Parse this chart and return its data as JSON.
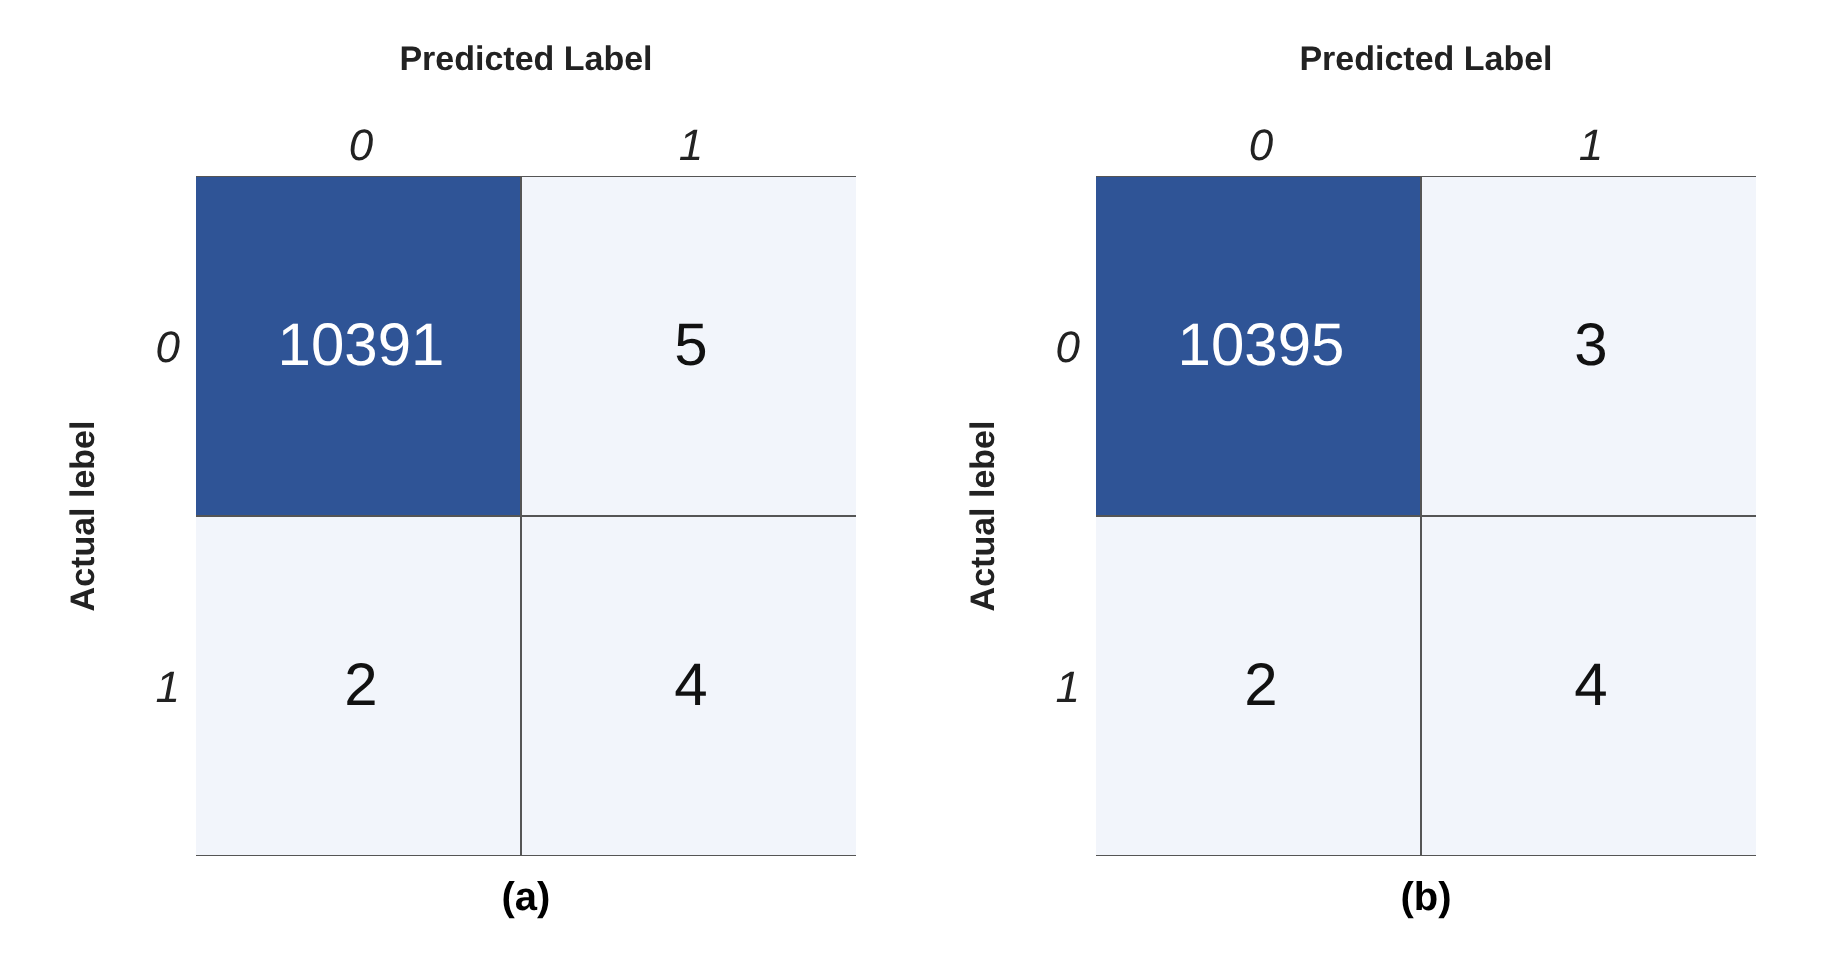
{
  "chart_data": [
    {
      "type": "heatmap",
      "title": "(a)",
      "xlabel": "Predicted Label",
      "ylabel": "Actual lebel",
      "categories": [
        "0",
        "1"
      ],
      "y_categories": [
        "0",
        "1"
      ],
      "cells": [
        [
          10391,
          5
        ],
        [
          2,
          4
        ]
      ],
      "data_labels": true
    },
    {
      "type": "heatmap",
      "title": "(b)",
      "xlabel": "Predicted Label",
      "ylabel": "Actual lebel",
      "categories": [
        "0",
        "1"
      ],
      "y_categories": [
        "0",
        "1"
      ],
      "cells": [
        [
          10395,
          3
        ],
        [
          2,
          4
        ]
      ],
      "data_labels": true
    }
  ]
}
